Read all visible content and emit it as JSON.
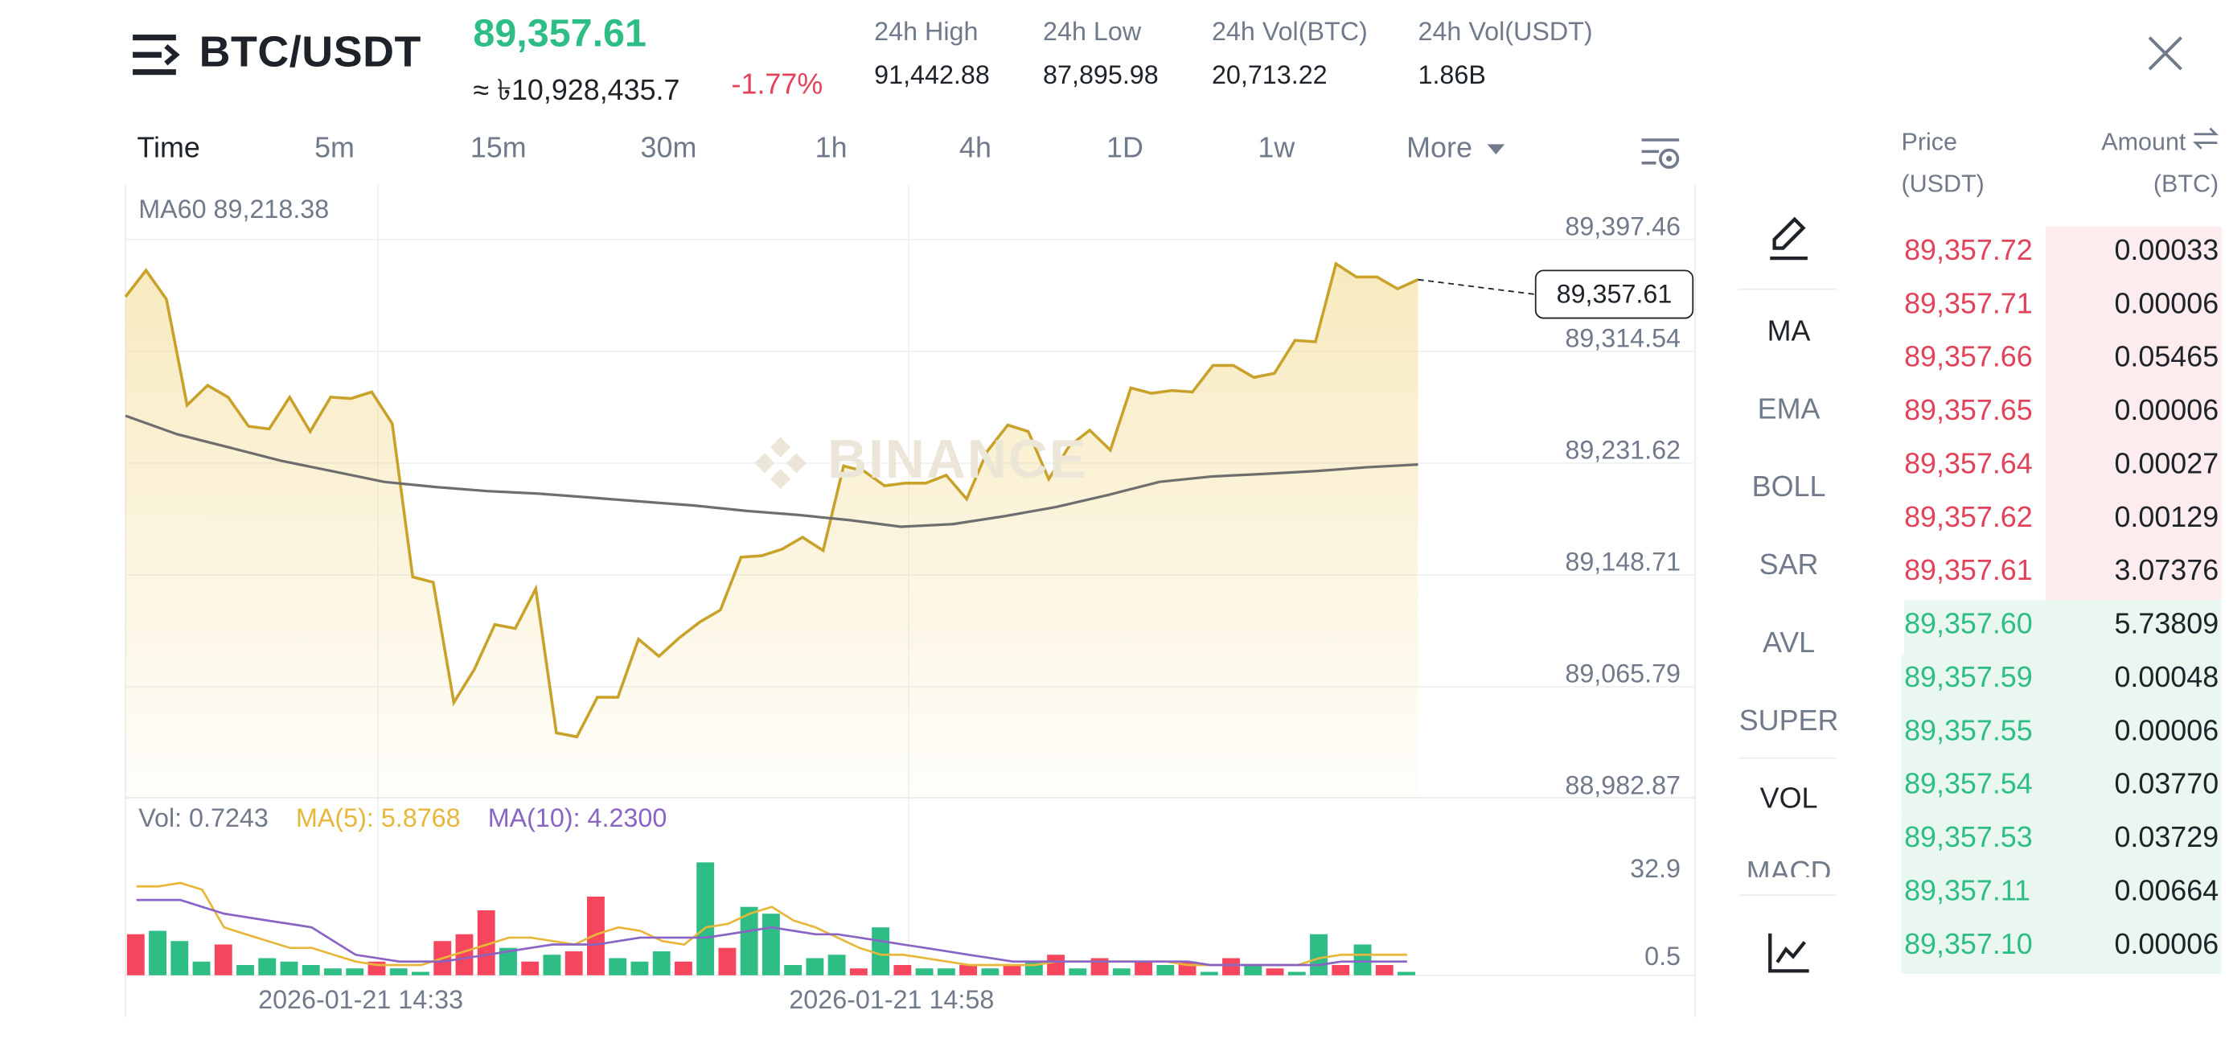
{
  "header": {
    "pair": "BTC/USDT",
    "last_price": "89,357.61",
    "fiat_price": "≈ ৳10,928,435.7",
    "change_pct": "-1.77%",
    "stats": [
      {
        "label": "24h High",
        "value": "91,442.88"
      },
      {
        "label": "24h Low",
        "value": "87,895.98"
      },
      {
        "label": "24h Vol(BTC)",
        "value": "20,713.22"
      },
      {
        "label": "24h Vol(USDT)",
        "value": "1.86B"
      }
    ]
  },
  "intervals": {
    "items": [
      "Time",
      "5m",
      "15m",
      "30m",
      "1h",
      "4h",
      "1D",
      "1w",
      "More"
    ],
    "active": "Time"
  },
  "chart": {
    "ma_label": "MA60 89,218.38",
    "current_price_tag": "89,357.61",
    "watermark": "BINANCE",
    "vol_label": "Vol: 0.7243",
    "vol_ma5": "MA(5): 5.8768",
    "vol_ma10": "MA(10): 4.2300",
    "vol_ticks": [
      "32.9",
      "0.5"
    ],
    "time_labels": [
      "2026-01-21 14:33",
      "2026-01-21 14:58"
    ],
    "colors": {
      "line": "#c9a22b",
      "ma60": "#6e6e6e",
      "up": "#2ebd85",
      "down": "#f6465d",
      "ma5": "#e6b73b",
      "ma10": "#8a64c4"
    }
  },
  "chart_data": {
    "type": "line",
    "title": "",
    "xlabel": "",
    "ylabel": "",
    "ylim": [
      88982.87,
      89425
    ],
    "y_ticks": [
      "89,397.46",
      "89,314.54",
      "89,231.62",
      "89,148.71",
      "89,065.79",
      "88,982.87"
    ],
    "series": [
      {
        "name": "",
        "values": [
          89362,
          89382,
          89360,
          89280,
          89295,
          89286,
          89264,
          89262,
          89286,
          89260,
          89286,
          89285,
          89290,
          89266,
          89150,
          89146,
          89055,
          89080,
          89114,
          89111,
          89141,
          89032,
          89029,
          89059,
          89059,
          89103,
          89090,
          89104,
          89116,
          89125,
          89165,
          89166,
          89171,
          89180,
          89170,
          89234,
          89230,
          89219,
          89221,
          89221,
          89227,
          89209,
          89245,
          89265,
          89260,
          89224,
          89249,
          89261,
          89246,
          89293,
          89289,
          89291,
          89290,
          89310,
          89310,
          89301,
          89304,
          89329,
          89328,
          89387,
          89377,
          89377,
          89368,
          89375
        ]
      },
      {
        "name": "MA60",
        "values": [
          89272,
          89258,
          89248,
          89238,
          89230,
          89222,
          89218,
          89215,
          89213,
          89210,
          89207,
          89204,
          89200,
          89197,
          89193,
          89188,
          89190,
          89196,
          89203,
          89212,
          89222,
          89226,
          89228,
          89230,
          89233,
          89235
        ]
      }
    ],
    "volume": {
      "max": 32.9,
      "values": [
        12,
        13,
        10,
        4,
        9,
        3,
        5,
        4,
        3,
        2,
        2,
        4,
        2,
        1,
        10,
        12,
        19,
        8,
        4,
        6,
        7,
        23,
        5,
        4,
        7,
        4,
        33,
        8,
        20,
        18,
        3,
        5,
        6,
        2,
        14,
        3,
        2,
        2,
        3,
        2,
        3,
        4,
        6,
        2,
        5,
        2,
        4,
        3,
        4,
        1,
        5,
        3,
        2,
        1,
        12,
        3,
        9,
        3,
        1
      ],
      "colors": [
        "r",
        "g",
        "g",
        "g",
        "r",
        "g",
        "g",
        "g",
        "g",
        "g",
        "g",
        "r",
        "g",
        "g",
        "r",
        "r",
        "r",
        "g",
        "r",
        "g",
        "r",
        "r",
        "g",
        "g",
        "g",
        "r",
        "g",
        "r",
        "g",
        "g",
        "g",
        "g",
        "g",
        "r",
        "g",
        "r",
        "g",
        "g",
        "r",
        "g",
        "r",
        "g",
        "r",
        "g",
        "r",
        "g",
        "r",
        "g",
        "r",
        "g",
        "r",
        "g",
        "r",
        "g",
        "g",
        "r",
        "g",
        "r",
        "g"
      ],
      "ma5": [
        26,
        26,
        27,
        25,
        14,
        12,
        10,
        8,
        8,
        6,
        4,
        3,
        3,
        3,
        5,
        7,
        9,
        11,
        11,
        10,
        9,
        12,
        14,
        13,
        10,
        9,
        14,
        15,
        18,
        20,
        16,
        14,
        11,
        8,
        6,
        6,
        5,
        4,
        3,
        3,
        3,
        3,
        4,
        4,
        4,
        4,
        4,
        4,
        3,
        3,
        3,
        3,
        3,
        3,
        5,
        6,
        6,
        6,
        6
      ],
      "ma10": [
        22,
        22,
        22,
        20,
        18,
        17,
        16,
        15,
        14,
        10,
        6,
        5,
        4,
        4,
        4,
        5,
        6,
        7,
        8,
        9,
        9,
        9,
        10,
        11,
        11,
        11,
        11,
        12,
        13,
        14,
        13,
        12,
        12,
        11,
        10,
        9,
        8,
        7,
        6,
        5,
        4,
        4,
        4,
        4,
        4,
        4,
        4,
        4,
        4,
        3,
        3,
        3,
        3,
        3,
        3,
        4,
        4,
        4,
        4
      ]
    }
  },
  "tools": {
    "items": [
      "MA",
      "EMA",
      "BOLL",
      "SAR",
      "AVL",
      "SUPER",
      "VOL",
      "MACD"
    ],
    "active": [
      "MA",
      "VOL"
    ]
  },
  "orderbook": {
    "price_header": "Price",
    "price_unit": "(USDT)",
    "amount_header": "Amount",
    "amount_unit": "(BTC)",
    "asks": [
      {
        "price": "89,357.72",
        "amount": "0.00033",
        "depth": 0.55
      },
      {
        "price": "89,357.71",
        "amount": "0.00006",
        "depth": 0.55
      },
      {
        "price": "89,357.66",
        "amount": "0.05465",
        "depth": 0.55
      },
      {
        "price": "89,357.65",
        "amount": "0.00006",
        "depth": 0.55
      },
      {
        "price": "89,357.64",
        "amount": "0.00027",
        "depth": 0.55
      },
      {
        "price": "89,357.62",
        "amount": "0.00129",
        "depth": 0.55
      },
      {
        "price": "89,357.61",
        "amount": "3.07376",
        "depth": 0.55
      }
    ],
    "bids": [
      {
        "price": "89,357.60",
        "amount": "5.73809",
        "depth": 0.99
      },
      {
        "price": "89,357.59",
        "amount": "0.00048",
        "depth": 1.0
      },
      {
        "price": "89,357.55",
        "amount": "0.00006",
        "depth": 1.0
      },
      {
        "price": "89,357.54",
        "amount": "0.03770",
        "depth": 1.0
      },
      {
        "price": "89,357.53",
        "amount": "0.03729",
        "depth": 1.0
      },
      {
        "price": "89,357.11",
        "amount": "0.00664",
        "depth": 1.0
      },
      {
        "price": "89,357.10",
        "amount": "0.00006",
        "depth": 1.0
      }
    ]
  }
}
